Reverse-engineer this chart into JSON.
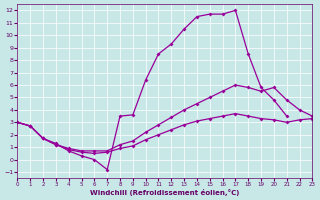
{
  "title": "",
  "xlabel": "Windchill (Refroidissement éolien,°C)",
  "ylabel": "",
  "bg_color": "#c8e8e8",
  "line_color": "#990099",
  "grid_color": "#ffffff",
  "xlim": [
    0,
    23
  ],
  "ylim": [
    -1.5,
    12.5
  ],
  "xticks": [
    0,
    1,
    2,
    3,
    4,
    5,
    6,
    7,
    8,
    9,
    10,
    11,
    12,
    13,
    14,
    15,
    16,
    17,
    18,
    19,
    20,
    21,
    22,
    23
  ],
  "yticks": [
    -1,
    0,
    1,
    2,
    3,
    4,
    5,
    6,
    7,
    8,
    9,
    10,
    11,
    12
  ],
  "line1_x": [
    0,
    1,
    2,
    3,
    4,
    5,
    6,
    7,
    8,
    9,
    10,
    11,
    12,
    13,
    14,
    15,
    16,
    17,
    18,
    19,
    20,
    21
  ],
  "line1_y": [
    3.0,
    2.7,
    1.7,
    1.3,
    0.7,
    0.3,
    0.0,
    -0.8,
    3.5,
    3.6,
    6.4,
    8.5,
    9.3,
    10.5,
    11.5,
    11.7,
    11.7,
    12.0,
    8.5,
    5.8,
    4.8,
    3.5
  ],
  "line2_x": [
    0,
    1,
    2,
    3,
    4,
    5,
    6,
    7,
    8,
    9,
    10,
    11,
    12,
    13,
    14,
    15,
    16,
    17,
    18,
    19,
    20,
    21,
    22,
    23
  ],
  "line2_y": [
    3.0,
    2.7,
    1.7,
    1.2,
    0.9,
    0.7,
    0.7,
    0.7,
    1.2,
    1.5,
    2.2,
    2.8,
    3.4,
    4.0,
    4.5,
    5.0,
    5.5,
    6.0,
    5.8,
    5.5,
    5.8,
    4.8,
    4.0,
    3.5
  ],
  "line3_x": [
    0,
    1,
    2,
    3,
    4,
    5,
    6,
    7,
    8,
    9,
    10,
    11,
    12,
    13,
    14,
    15,
    16,
    17,
    18,
    19,
    20,
    21,
    22,
    23
  ],
  "line3_y": [
    3.0,
    2.7,
    1.7,
    1.2,
    0.8,
    0.6,
    0.5,
    0.6,
    0.9,
    1.1,
    1.6,
    2.0,
    2.4,
    2.8,
    3.1,
    3.3,
    3.5,
    3.7,
    3.5,
    3.3,
    3.2,
    3.0,
    3.2,
    3.3
  ]
}
